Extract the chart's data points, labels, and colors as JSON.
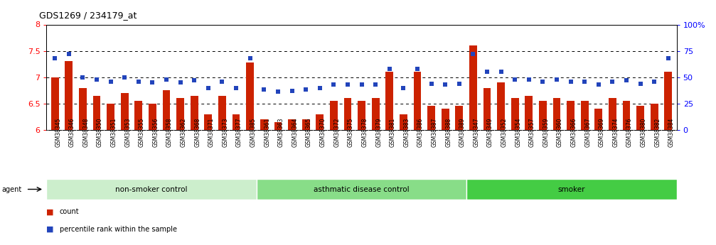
{
  "title": "GDS1269 / 234179_at",
  "samples": [
    "GSM38345",
    "GSM38346",
    "GSM38348",
    "GSM38350",
    "GSM38351",
    "GSM38353",
    "GSM38355",
    "GSM38356",
    "GSM38358",
    "GSM38362",
    "GSM38368",
    "GSM38371",
    "GSM38373",
    "GSM38377",
    "GSM38385",
    "GSM38361",
    "GSM38363",
    "GSM38364",
    "GSM38365",
    "GSM38370",
    "GSM38372",
    "GSM38375",
    "GSM38378",
    "GSM38379",
    "GSM38381",
    "GSM38383",
    "GSM38386",
    "GSM38387",
    "GSM38388",
    "GSM38389",
    "GSM38347",
    "GSM38349",
    "GSM38352",
    "GSM38354",
    "GSM38357",
    "GSM38359",
    "GSM38360",
    "GSM38366",
    "GSM38367",
    "GSM38369",
    "GSM38374",
    "GSM38376",
    "GSM38380",
    "GSM38382",
    "GSM38384"
  ],
  "bar_values": [
    7.0,
    7.3,
    6.8,
    6.65,
    6.5,
    6.7,
    6.55,
    6.5,
    6.75,
    6.6,
    6.65,
    6.3,
    6.65,
    6.3,
    7.28,
    6.2,
    6.15,
    6.2,
    6.2,
    6.3,
    6.55,
    6.6,
    6.55,
    6.6,
    7.1,
    6.3,
    7.1,
    6.45,
    6.4,
    6.45,
    7.6,
    6.8,
    6.9,
    6.6,
    6.65,
    6.55,
    6.6,
    6.55,
    6.55,
    6.4,
    6.6,
    6.55,
    6.45,
    6.5,
    7.1
  ],
  "percentile_values": [
    68,
    72,
    50,
    48,
    46,
    50,
    46,
    45,
    48,
    45,
    47,
    40,
    46,
    40,
    68,
    38,
    36,
    37,
    38,
    40,
    43,
    43,
    43,
    43,
    58,
    40,
    58,
    44,
    43,
    44,
    72,
    55,
    55,
    48,
    48,
    46,
    48,
    46,
    46,
    43,
    46,
    47,
    44,
    46,
    68
  ],
  "groups": [
    {
      "label": "non-smoker control",
      "start": 0,
      "end": 15,
      "color": "#cceecc"
    },
    {
      "label": "asthmatic disease control",
      "start": 15,
      "end": 30,
      "color": "#88dd88"
    },
    {
      "label": "smoker",
      "start": 30,
      "end": 45,
      "color": "#44cc44"
    }
  ],
  "bar_color": "#cc2200",
  "dot_color": "#2244bb",
  "ylim_left": [
    6.0,
    8.0
  ],
  "ylim_right": [
    0,
    100
  ],
  "yticks_left": [
    6.0,
    6.5,
    7.0,
    7.5,
    8.0
  ],
  "ytick_labels_left": [
    "6",
    "6.5",
    "7",
    "7.5",
    "8"
  ],
  "yticks_right": [
    0,
    25,
    50,
    75,
    100
  ],
  "ytick_labels_right": [
    "0",
    "25",
    "50",
    "75",
    "100%"
  ],
  "dotted_lines": [
    6.5,
    7.0,
    7.5
  ],
  "bg_color": "#e8e8e8",
  "plot_bg": "#ffffff",
  "legend": [
    {
      "label": "count",
      "color": "#cc2200"
    },
    {
      "label": "percentile rank within the sample",
      "color": "#2244bb"
    }
  ]
}
